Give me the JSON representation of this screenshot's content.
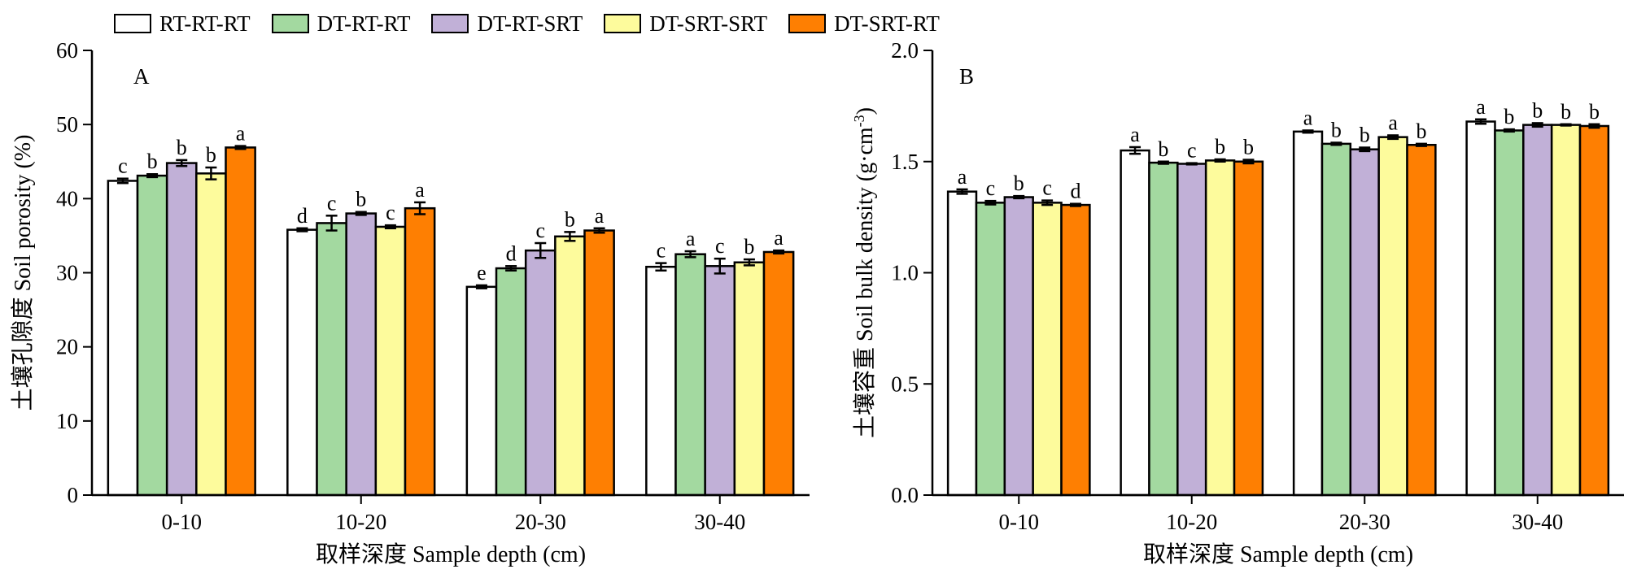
{
  "legend": [
    {
      "name": "RT-RT-RT",
      "color": "#ffffff"
    },
    {
      "name": "DT-RT-RT",
      "color": "#a3d9a0"
    },
    {
      "name": "DT-RT-SRT",
      "color": "#c1b0d7"
    },
    {
      "name": "DT-SRT-SRT",
      "color": "#fdfb9c"
    },
    {
      "name": "DT-SRT-RT",
      "color": "#fe7f02"
    }
  ],
  "chart_data": [
    {
      "type": "bar",
      "panel_label": "A",
      "categories": [
        "0-10",
        "10-20",
        "20-30",
        "30-40"
      ],
      "xlabel": "取样深度 Sample depth (cm)",
      "ylabel": "土壤孔隙度 Soil porosity (%)",
      "ylim": [
        0,
        60
      ],
      "yticks": [
        "0",
        "10",
        "20",
        "30",
        "40",
        "50",
        "60"
      ],
      "series": [
        {
          "name": "RT-RT-RT",
          "values": [
            42.4,
            35.8,
            28.1,
            30.8
          ],
          "errors": [
            0.3,
            0.2,
            0.2,
            0.5
          ],
          "labels": [
            "c",
            "d",
            "e",
            "c"
          ]
        },
        {
          "name": "DT-RT-RT",
          "values": [
            43.1,
            36.7,
            30.6,
            32.5
          ],
          "errors": [
            0.2,
            1.0,
            0.3,
            0.4
          ],
          "labels": [
            "b",
            "c",
            "d",
            "a"
          ]
        },
        {
          "name": "DT-RT-SRT",
          "values": [
            44.8,
            38.0,
            33.0,
            30.9
          ],
          "errors": [
            0.4,
            0.2,
            1.0,
            1.0
          ],
          "labels": [
            "b",
            "b",
            "c",
            "c"
          ]
        },
        {
          "name": "DT-SRT-SRT",
          "values": [
            43.4,
            36.2,
            34.9,
            31.4
          ],
          "errors": [
            0.8,
            0.2,
            0.6,
            0.4
          ],
          "labels": [
            "b",
            "c",
            "b",
            "b"
          ]
        },
        {
          "name": "DT-SRT-RT",
          "values": [
            46.9,
            38.7,
            35.7,
            32.8
          ],
          "errors": [
            0.2,
            0.8,
            0.3,
            0.2
          ],
          "labels": [
            "a",
            "a",
            "a",
            "a"
          ]
        }
      ]
    },
    {
      "type": "bar",
      "panel_label": "B",
      "categories": [
        "0-10",
        "10-20",
        "20-30",
        "30-40"
      ],
      "xlabel": "取样深度 Sample depth (cm)",
      "ylabel": "土壤容重 Soil bulk density (g·cm",
      "ylabel_sup": "-3",
      "ylabel_end": ")",
      "ylim": [
        0,
        2.0
      ],
      "yticks": [
        "0.0",
        "0.5",
        "1.0",
        "1.5",
        "2.0"
      ],
      "series": [
        {
          "name": "RT-RT-RT",
          "values": [
            1.365,
            1.55,
            1.635,
            1.68
          ],
          "errors": [
            0.01,
            0.015,
            0.005,
            0.01
          ],
          "labels": [
            "a",
            "a",
            "a",
            "a"
          ]
        },
        {
          "name": "DT-RT-RT",
          "values": [
            1.315,
            1.495,
            1.58,
            1.64
          ],
          "errors": [
            0.008,
            0.005,
            0.005,
            0.005
          ],
          "labels": [
            "c",
            "b",
            "b",
            "b"
          ]
        },
        {
          "name": "DT-RT-SRT",
          "values": [
            1.34,
            1.49,
            1.555,
            1.665
          ],
          "errors": [
            0.005,
            0.003,
            0.008,
            0.008
          ],
          "labels": [
            "b",
            "c",
            "b",
            "b"
          ]
        },
        {
          "name": "DT-SRT-SRT",
          "values": [
            1.315,
            1.505,
            1.61,
            1.665
          ],
          "errors": [
            0.01,
            0.005,
            0.008,
            0.003
          ],
          "labels": [
            "c",
            "b",
            "a",
            "b"
          ]
        },
        {
          "name": "DT-SRT-RT",
          "values": [
            1.305,
            1.5,
            1.575,
            1.66
          ],
          "errors": [
            0.005,
            0.008,
            0.005,
            0.008
          ],
          "labels": [
            "d",
            "b",
            "b",
            "b"
          ]
        }
      ]
    }
  ]
}
